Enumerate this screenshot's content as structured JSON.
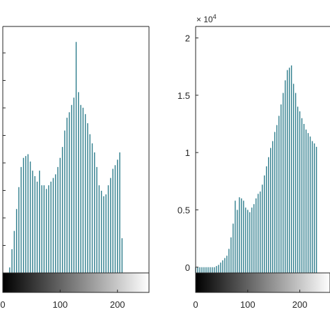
{
  "chart_data": [
    {
      "type": "bar",
      "title": "",
      "xlabel": "",
      "ylabel": "",
      "xlim": [
        0,
        255
      ],
      "xticks": [
        0,
        100,
        200
      ],
      "xtick_labels": [
        "0",
        "100",
        "200"
      ],
      "yticks": [],
      "colorbar": "grayscale",
      "grid": false,
      "series_color": "#2e7d8c",
      "bar_spacing": 4,
      "values": [
        0,
        0,
        0,
        0.6,
        2.6,
        4.6,
        7.0,
        9.4,
        11.6,
        12.6,
        12.8,
        13.0,
        12.2,
        11.2,
        10.6,
        10.0,
        11.2,
        9.6,
        9.6,
        9.2,
        9.6,
        10.0,
        10.4,
        10.8,
        11.6,
        12.6,
        13.8,
        15.6,
        17.0,
        17.6,
        18.4,
        19.2,
        25.3,
        19.8,
        18.4,
        18.1,
        17.4,
        16.4,
        15.2,
        14.2,
        13.2,
        11.6,
        9.6,
        9.0,
        8.4,
        8.6,
        9.6,
        10.4,
        11.4,
        11.8,
        12.4,
        13.2,
        3.8
      ]
    },
    {
      "type": "bar",
      "title": "",
      "xlabel": "",
      "ylabel": "",
      "exponent_label": "× 10",
      "exponent_sup": "4",
      "xlim": [
        0,
        255
      ],
      "ylim": [
        -0.05,
        2.1
      ],
      "xticks": [
        0,
        100,
        200
      ],
      "xtick_labels": [
        "0",
        "100",
        "200"
      ],
      "yticks": [
        0,
        0.5,
        1,
        1.5,
        2
      ],
      "ytick_labels": [
        "0",
        "0.5",
        "1",
        "1.5",
        "2"
      ],
      "colorbar": "grayscale",
      "grid": false,
      "series_color": "#2e7d8c",
      "bar_spacing": 4,
      "x_max_visible": 233,
      "values": [
        0,
        0,
        0,
        0,
        0,
        0,
        0,
        0,
        0,
        0,
        0.01,
        0.02,
        0.04,
        0.06,
        0.08,
        0.1,
        0.16,
        0.26,
        0.38,
        0.58,
        0.5,
        0.61,
        0.6,
        0.58,
        0.52,
        0.5,
        0.48,
        0.52,
        0.55,
        0.6,
        0.64,
        0.66,
        0.72,
        0.8,
        0.88,
        0.96,
        1.04,
        1.1,
        1.18,
        1.24,
        1.32,
        1.42,
        1.52,
        1.63,
        1.72,
        1.74,
        1.76,
        1.6,
        1.52,
        1.4,
        1.36,
        1.3,
        1.25,
        1.2,
        1.17,
        1.14,
        1.1,
        1.08,
        1.05,
        1.02
      ]
    }
  ]
}
